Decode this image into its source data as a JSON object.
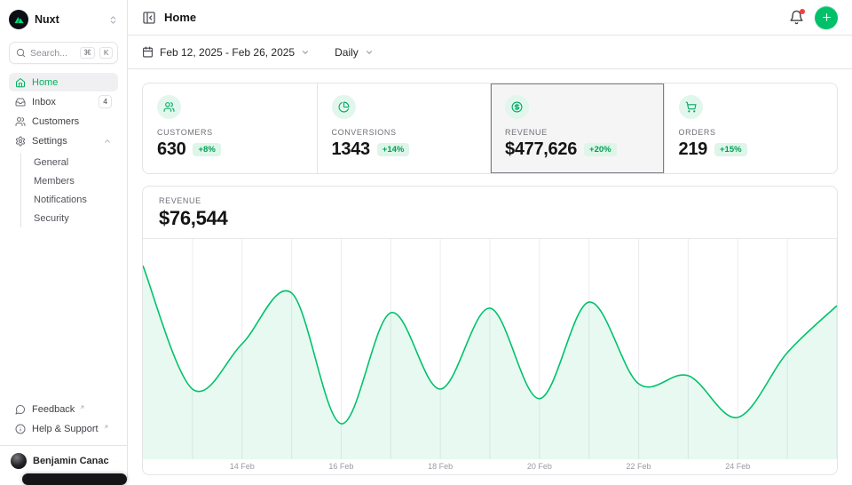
{
  "brand": {
    "name": "Nuxt"
  },
  "sidebar": {
    "search": {
      "placeholder": "Search...",
      "kbd": [
        "⌘",
        "K"
      ]
    },
    "items": [
      {
        "label": "Home",
        "active": true
      },
      {
        "label": "Inbox",
        "badge": "4"
      },
      {
        "label": "Customers"
      },
      {
        "label": "Settings",
        "expanded": true
      }
    ],
    "settings_children": [
      "General",
      "Members",
      "Notifications",
      "Security"
    ],
    "footer_items": [
      {
        "label": "Feedback",
        "external": true
      },
      {
        "label": "Help & Support",
        "external": true
      }
    ],
    "user": {
      "name": "Benjamin Canac"
    }
  },
  "header": {
    "title": "Home"
  },
  "toolbar": {
    "date_range": "Feb 12, 2025 - Feb 26, 2025",
    "period": "Daily"
  },
  "stats": [
    {
      "label": "CUSTOMERS",
      "value": "630",
      "delta": "+8%",
      "icon": "users-icon"
    },
    {
      "label": "CONVERSIONS",
      "value": "1343",
      "delta": "+14%",
      "icon": "pie-chart-icon"
    },
    {
      "label": "REVENUE",
      "value": "$477,626",
      "delta": "+20%",
      "icon": "dollar-circle-icon",
      "selected": true
    },
    {
      "label": "ORDERS",
      "value": "219",
      "delta": "+15%",
      "icon": "shopping-cart-icon"
    }
  ],
  "chart": {
    "label": "REVENUE",
    "value": "$76,544"
  },
  "chart_data": {
    "type": "area",
    "title": "REVENUE",
    "subtitle": "$76,544",
    "x": [
      "Feb 12",
      "Feb 13",
      "Feb 14",
      "Feb 15",
      "Feb 16",
      "Feb 17",
      "Feb 18",
      "Feb 19",
      "Feb 20",
      "Feb 21",
      "Feb 22",
      "Feb 23",
      "Feb 24",
      "Feb 25",
      "Feb 26"
    ],
    "values": [
      76544,
      27700,
      45600,
      65700,
      14000,
      57900,
      27700,
      59700,
      23900,
      62100,
      29800,
      33000,
      16500,
      42100,
      60700
    ],
    "x_tick_labels": [
      "14 Feb",
      "16 Feb",
      "18 Feb",
      "20 Feb",
      "22 Feb",
      "24 Feb"
    ],
    "x_tick_positions": [
      2,
      4,
      6,
      8,
      10,
      12
    ],
    "ylabel": "",
    "xlabel": "",
    "grid": "vertical",
    "legend": false,
    "smooth": true
  },
  "colors": {
    "accent": "#00c16a",
    "accent_text": "#00a155",
    "area_fill": "rgba(0,193,106,0.09)",
    "grid_line": "#ececf1",
    "notification_dot": "#f43f3f",
    "logo_green": "#00dc82"
  }
}
